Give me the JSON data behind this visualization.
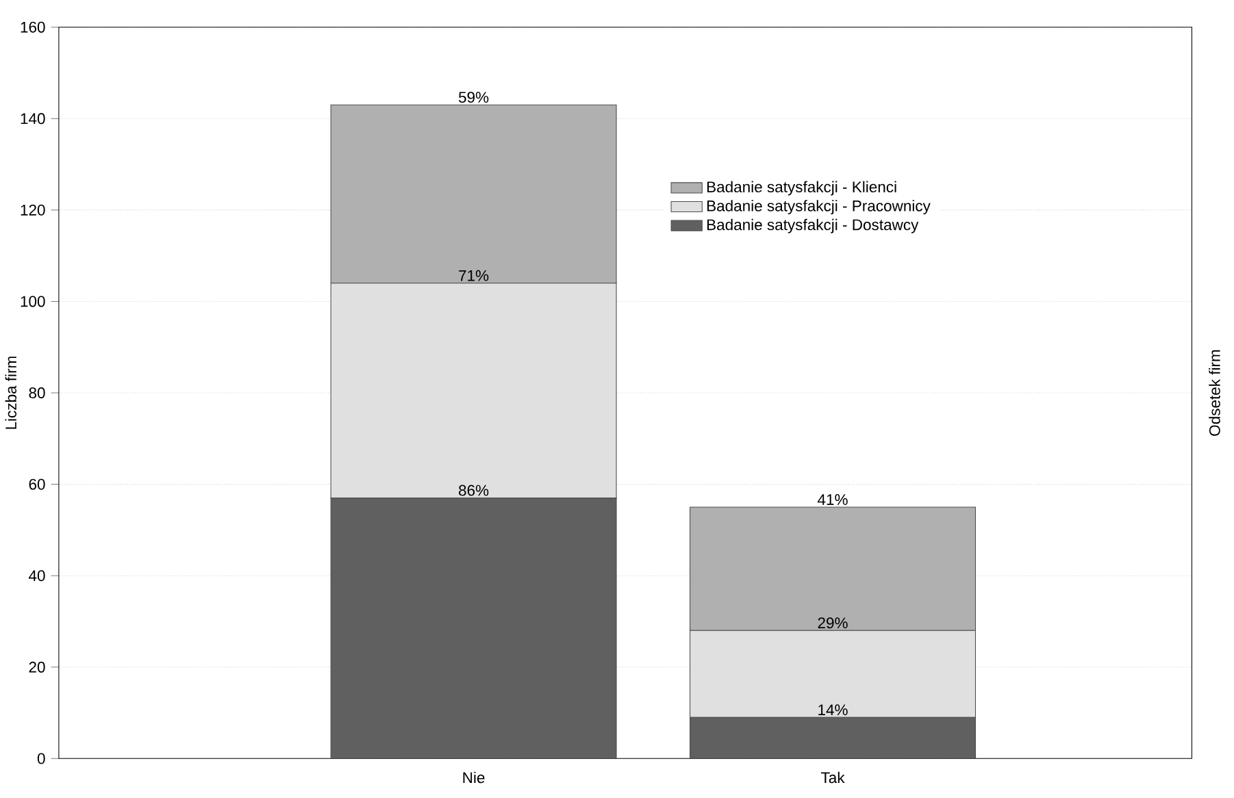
{
  "chart_data": {
    "type": "bar",
    "stacked": true,
    "ylabel": "Liczba firm",
    "y2label": "Odsetek firm",
    "categories": [
      "Nie",
      "Tak"
    ],
    "series": [
      {
        "name": "Badanie satysfakcji - Dostawcy",
        "color": "#606060",
        "values": [
          57,
          9
        ]
      },
      {
        "name": "Badanie satysfakcji - Pracownicy",
        "color": "#e0e0e0",
        "values": [
          47,
          19
        ]
      },
      {
        "name": "Badanie satysfakcji - Klienci",
        "color": "#b0b0b0",
        "values": [
          39,
          27
        ]
      }
    ],
    "annotations": [
      {
        "text": "86%",
        "x": "Nie",
        "y": 57
      },
      {
        "text": "71%",
        "x": "Nie",
        "y": 104
      },
      {
        "text": "59%",
        "x": "Nie",
        "y": 143
      },
      {
        "text": "14%",
        "x": "Tak",
        "y": 9
      },
      {
        "text": "29%",
        "x": "Tak",
        "y": 28
      },
      {
        "text": "41%",
        "x": "Tak",
        "y": 55
      }
    ],
    "ylim": [
      0,
      160
    ],
    "yticks": [
      0,
      20,
      40,
      60,
      80,
      100,
      120,
      140,
      160
    ],
    "grid": "y",
    "legend": "top right"
  }
}
